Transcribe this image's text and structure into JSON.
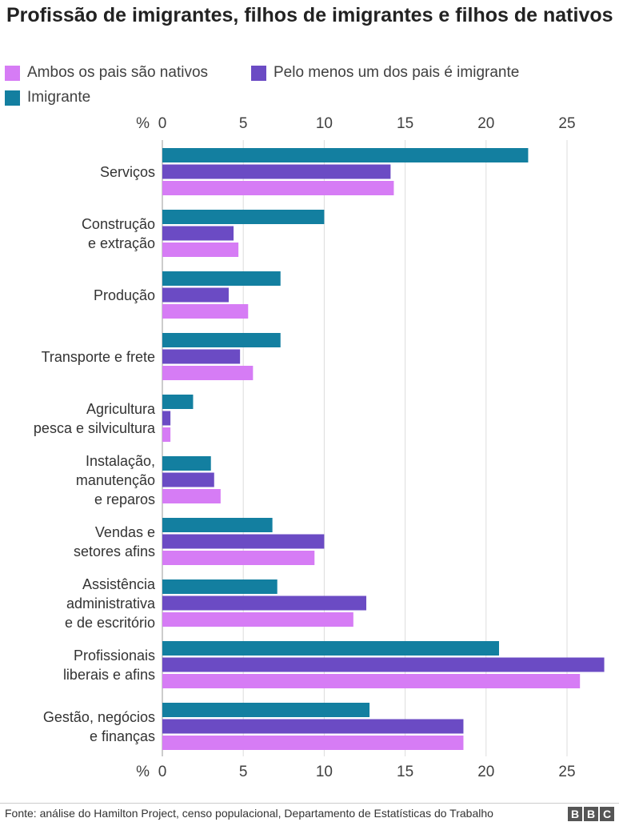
{
  "chart_data": {
    "type": "bar",
    "orientation": "horizontal",
    "title": "Profissão de imigrantes, filhos de imigrantes e filhos de nativos",
    "unit_label": "%",
    "categories": [
      [
        "Serviços"
      ],
      [
        "Construção",
        "e extração"
      ],
      [
        "Produção"
      ],
      [
        "Transporte e frete"
      ],
      [
        "Agricultura",
        "pesca e silvicultura"
      ],
      [
        "Instalação,",
        "manutenção",
        "e reparos"
      ],
      [
        "Vendas e",
        "setores afins"
      ],
      [
        "Assistência",
        "administrativa",
        "e de escritório"
      ],
      [
        "Profissionais",
        "liberais e afins"
      ],
      [
        "Gestão, negócios",
        "e finanças"
      ]
    ],
    "series": [
      {
        "name": "Imigrante",
        "color": "#137fa0",
        "values": [
          22.6,
          10.0,
          7.3,
          7.3,
          1.9,
          3.0,
          6.8,
          7.1,
          20.8,
          12.8
        ]
      },
      {
        "name": "Pelo menos um dos pais é imigrante",
        "color": "#6b4bc4",
        "values": [
          14.1,
          4.4,
          4.1,
          4.8,
          0.5,
          3.2,
          10.0,
          12.6,
          27.3,
          18.6
        ]
      },
      {
        "name": "Ambos os pais são nativos",
        "color": "#d67cf5",
        "values": [
          14.3,
          4.7,
          5.3,
          5.6,
          0.5,
          3.6,
          9.4,
          11.8,
          25.8,
          18.6
        ]
      }
    ],
    "legend_order": [
      2,
      1,
      0
    ],
    "xlim": [
      0,
      27.5
    ],
    "xticks": [
      0,
      5,
      10,
      15,
      20,
      25
    ],
    "grid": true,
    "legend_position": "top"
  },
  "footer": {
    "source": "Fonte: análise do Hamilton Project, censo populacional, Departamento de Estatísticas do Trabalho",
    "logo": "BBC"
  }
}
